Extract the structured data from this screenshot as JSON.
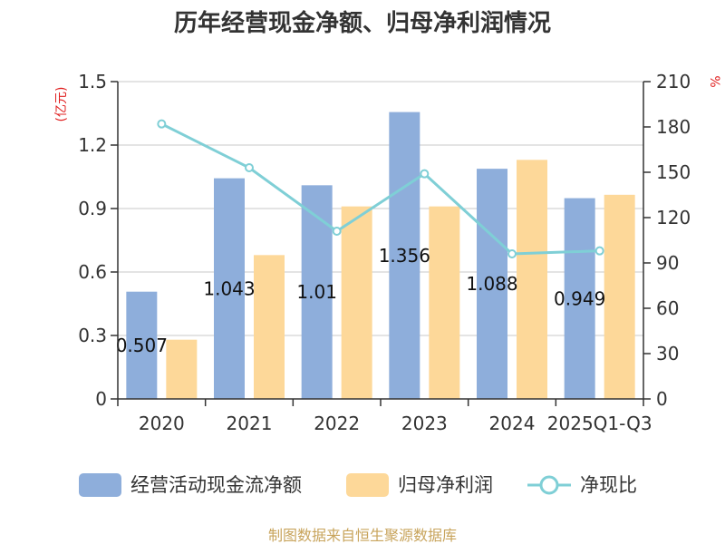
{
  "chart_data": {
    "type": "bar",
    "title": "历年经营现金净额、归母净利润情况",
    "categories": [
      "2020",
      "2021",
      "2022",
      "2023",
      "2024",
      "2025Q1-Q3"
    ],
    "series": [
      {
        "name": "经营活动现金流净额",
        "type": "bar",
        "axis": "left",
        "color": "#8eaedb",
        "values": [
          0.507,
          1.043,
          1.01,
          1.356,
          1.088,
          0.949
        ]
      },
      {
        "name": "归母净利润",
        "type": "bar",
        "axis": "left",
        "color": "#fdd899",
        "values": [
          0.28,
          0.68,
          0.91,
          0.91,
          1.13,
          0.965
        ]
      },
      {
        "name": "净现比",
        "type": "line",
        "axis": "right",
        "color": "#7fcfd6",
        "values": [
          182,
          153,
          111,
          149,
          96,
          98
        ]
      }
    ],
    "data_labels": [
      "0.507",
      "1.043",
      "1.01",
      "1.356",
      "1.088",
      "0.949"
    ],
    "y_left": {
      "label": "(亿元)",
      "ylim": [
        0,
        1.5
      ],
      "ticks": [
        "0",
        "0.3",
        "0.6",
        "0.9",
        "1.2",
        "1.5"
      ]
    },
    "y_right": {
      "label": "%",
      "ylim": [
        0,
        210
      ],
      "ticks": [
        "0",
        "30",
        "60",
        "90",
        "120",
        "150",
        "180",
        "210"
      ]
    },
    "grid": true,
    "legend_position": "bottom"
  },
  "footer": {
    "source": "制图数据来自恒生聚源数据库"
  }
}
